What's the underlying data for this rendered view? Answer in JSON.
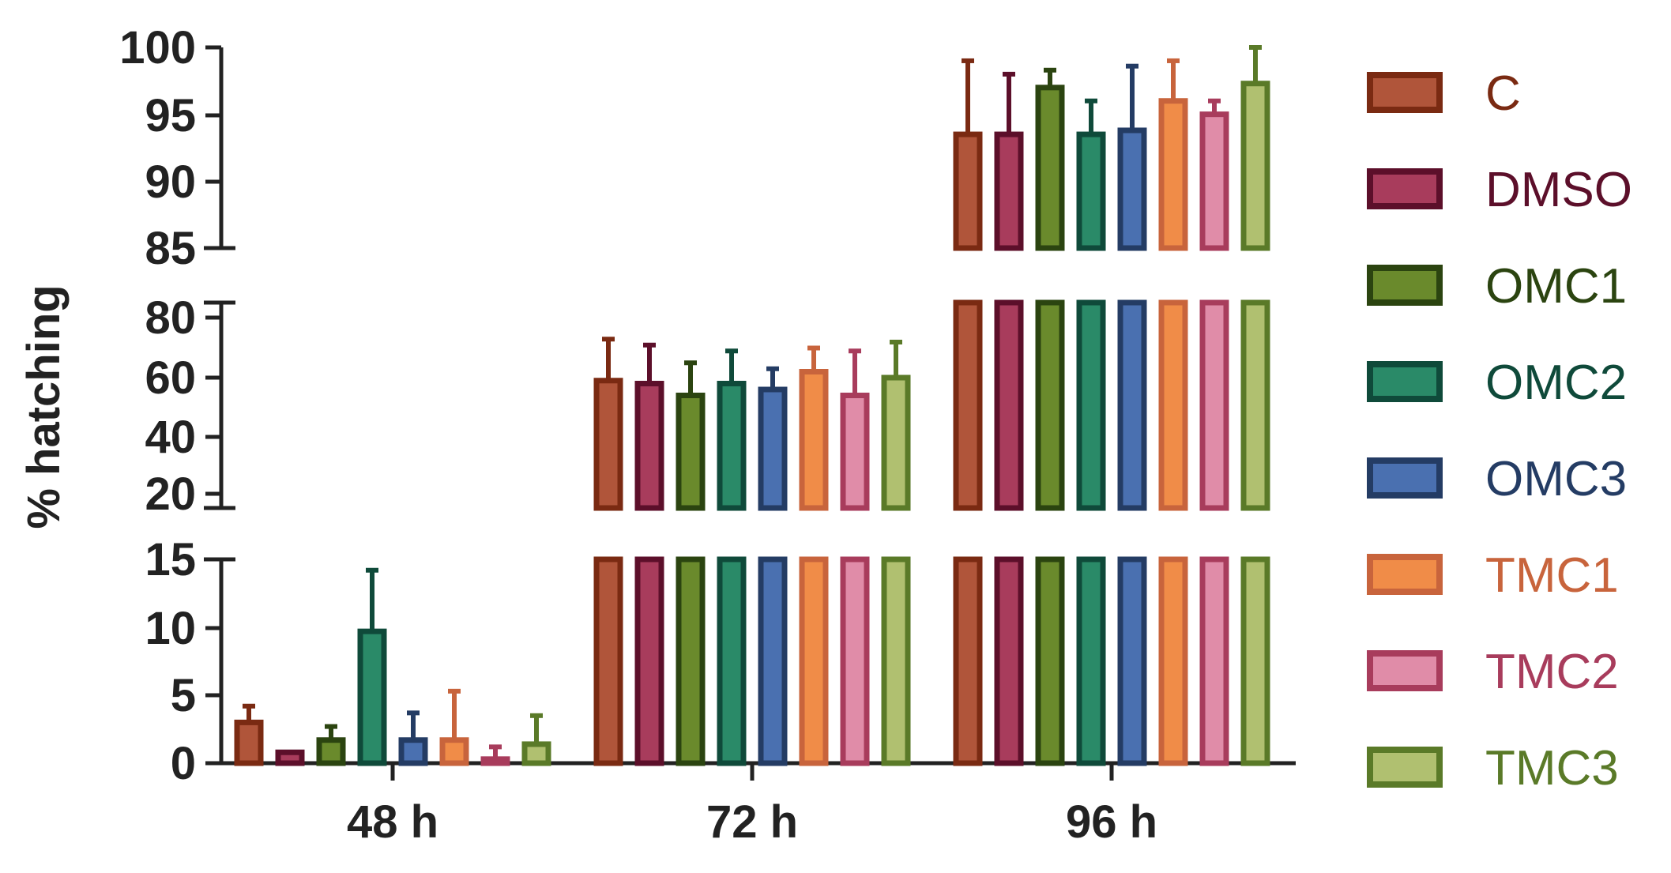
{
  "chart_data": {
    "type": "bar",
    "ylabel": "% hatching",
    "categories": [
      "48 h",
      "72 h",
      "96 h"
    ],
    "y_axis_breaks": [
      {
        "ylim": [
          0,
          15
        ],
        "ticks": [
          "0",
          "5",
          "10",
          "15"
        ]
      },
      {
        "ylim": [
          15,
          80
        ],
        "ticks": [
          "20",
          "40",
          "60",
          "80"
        ]
      },
      {
        "ylim": [
          85,
          100
        ],
        "ticks": [
          "85",
          "90",
          "95",
          "100"
        ]
      }
    ],
    "series": [
      {
        "name": "C",
        "values": [
          3.0,
          59,
          93.5
        ],
        "errors": [
          1.2,
          14,
          5.5
        ],
        "color": "#7a2a12",
        "fill": "#b0553a"
      },
      {
        "name": "DMSO",
        "values": [
          0.8,
          58,
          93.5
        ],
        "errors": [
          0.0,
          13,
          4.5
        ],
        "color": "#5c0f2a",
        "fill": "#a83c5c"
      },
      {
        "name": "OMC1",
        "values": [
          1.7,
          54,
          97.0
        ],
        "errors": [
          1.0,
          11,
          1.3
        ],
        "color": "#2b4410",
        "fill": "#6a8a2c"
      },
      {
        "name": "OMC2",
        "values": [
          9.7,
          58,
          93.5
        ],
        "errors": [
          4.5,
          11,
          2.5
        ],
        "color": "#0f4a3a",
        "fill": "#2a8a68"
      },
      {
        "name": "OMC3",
        "values": [
          1.7,
          56,
          93.8
        ],
        "errors": [
          2.0,
          7,
          4.8
        ],
        "color": "#243c64",
        "fill": "#4a70b0"
      },
      {
        "name": "TMC1",
        "values": [
          1.7,
          62,
          96.0
        ],
        "errors": [
          3.6,
          8,
          3.0
        ],
        "color": "#c8643c",
        "fill": "#f08c48"
      },
      {
        "name": "TMC2",
        "values": [
          0.3,
          54,
          95.0
        ],
        "errors": [
          0.9,
          15,
          1.0
        ],
        "color": "#a83c5c",
        "fill": "#e08ca8"
      },
      {
        "name": "TMC3",
        "values": [
          1.4,
          60,
          97.3
        ],
        "errors": [
          2.1,
          12,
          2.7
        ],
        "color": "#5a7a28",
        "fill": "#b0c070"
      }
    ],
    "legend_position": "right",
    "grid": false
  }
}
